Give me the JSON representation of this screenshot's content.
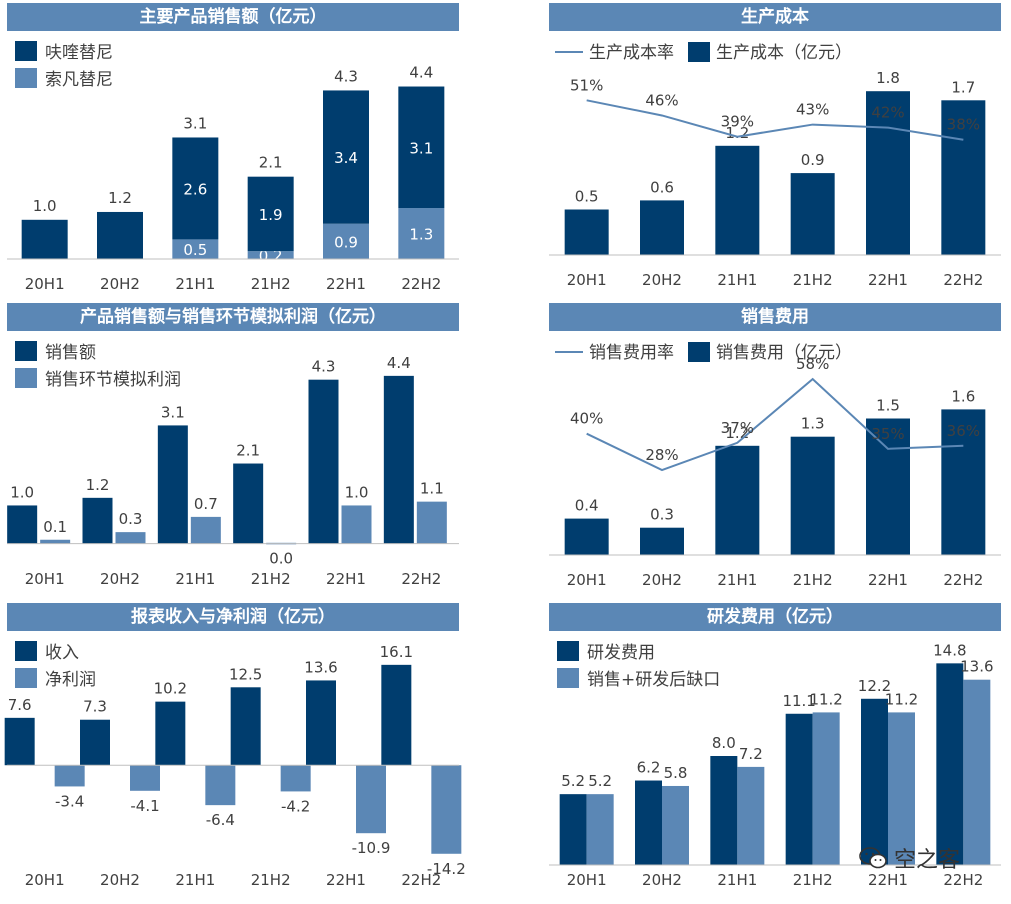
{
  "colors": {
    "dark": "#003d6e",
    "light": "#5b87b5",
    "title_bg": "#5b87b5",
    "text": "#404040"
  },
  "watermark": {
    "text": "空之客",
    "icon": "wechat-icon"
  },
  "chart_data": [
    {
      "id": "p1",
      "type": "bar",
      "stacked": true,
      "title": "主要产品销售额（亿元）",
      "categories": [
        "20H1",
        "20H2",
        "21H1",
        "21H2",
        "22H1",
        "22H2"
      ],
      "series": [
        {
          "name": "呋喹替尼",
          "values": [
            1.0,
            1.2,
            2.6,
            1.9,
            3.4,
            3.1
          ],
          "color": "dark",
          "labels": [
            "",
            "",
            "2.6",
            "1.9",
            "3.4",
            "3.1"
          ]
        },
        {
          "name": "索凡替尼",
          "values": [
            0,
            0,
            0.5,
            0.2,
            0.9,
            1.3
          ],
          "color": "light",
          "labels": [
            "",
            "",
            "0.5",
            "0.2",
            "0.9",
            "1.3"
          ]
        }
      ],
      "totals": [
        "1.0",
        "1.2",
        "3.1",
        "2.1",
        "4.3",
        "4.4"
      ],
      "ylim": [
        0,
        5
      ],
      "legend": "top-left"
    },
    {
      "id": "p2",
      "type": "bar+line",
      "title": "生产成本",
      "categories": [
        "20H1",
        "20H2",
        "21H1",
        "21H2",
        "22H1",
        "22H2"
      ],
      "bars": {
        "name": "生产成本（亿元）",
        "values": [
          0.5,
          0.6,
          1.2,
          0.9,
          1.8,
          1.7
        ],
        "color": "dark"
      },
      "line": {
        "name": "生产成本率",
        "values": [
          51,
          46,
          39,
          43,
          42,
          38
        ],
        "labels": [
          "51%",
          "46%",
          "39%",
          "43%",
          "42%",
          "38%"
        ],
        "color": "light"
      },
      "ylim": [
        0,
        2
      ],
      "line_ylim": [
        0,
        60
      ],
      "legend": "top"
    },
    {
      "id": "p3",
      "type": "bar",
      "grouped": true,
      "title": "产品销售额与销售环节模拟利润（亿元）",
      "categories": [
        "20H1",
        "20H2",
        "21H1",
        "21H2",
        "22H1",
        "22H2"
      ],
      "series": [
        {
          "name": "销售额",
          "values": [
            1.0,
            1.2,
            3.1,
            2.1,
            4.3,
            4.4
          ],
          "color": "dark",
          "labels": [
            "1.0",
            "1.2",
            "3.1",
            "2.1",
            "4.3",
            "4.4"
          ]
        },
        {
          "name": "销售环节模拟利润",
          "values": [
            0.1,
            0.3,
            0.7,
            0.0,
            1.0,
            1.1
          ],
          "color": "light",
          "labels": [
            "0.1",
            "0.3",
            "0.7",
            "0.0",
            "1.0",
            "1.1"
          ]
        }
      ],
      "ylim": [
        -0.3,
        5
      ],
      "legend": "top-left"
    },
    {
      "id": "p4",
      "type": "bar+line",
      "title": "销售费用",
      "categories": [
        "20H1",
        "20H2",
        "21H1",
        "21H2",
        "22H1",
        "22H2"
      ],
      "bars": {
        "name": "销售费用（亿元）",
        "values": [
          0.4,
          0.3,
          1.2,
          1.3,
          1.5,
          1.6
        ],
        "color": "dark"
      },
      "line": {
        "name": "销售费用率",
        "values": [
          40,
          28,
          37,
          58,
          35,
          36
        ],
        "labels": [
          "40%",
          "28%",
          "37%",
          "58%",
          "35%",
          "36%"
        ],
        "color": "light"
      },
      "ylim": [
        0,
        2
      ],
      "line_ylim": [
        0,
        60
      ],
      "legend": "top"
    },
    {
      "id": "p5",
      "type": "bar",
      "grouped": true,
      "title": "报表收入与净利润（亿元）",
      "categories": [
        "20H1",
        "20H2",
        "21H1",
        "21H2",
        "22H1",
        "22H2"
      ],
      "series": [
        {
          "name": "收入",
          "values": [
            7.6,
            7.3,
            10.2,
            12.5,
            13.6,
            16.1
          ],
          "color": "dark",
          "labels": [
            "7.6",
            "7.3",
            "10.2",
            "12.5",
            "13.6",
            "16.1"
          ]
        },
        {
          "name": "净利润",
          "values": [
            -3.4,
            -4.1,
            -6.4,
            -4.2,
            -10.9,
            -14.2
          ],
          "color": "light",
          "labels": [
            "-3.4",
            "-4.1",
            "-6.4",
            "-4.2",
            "-10.9",
            "-14.2"
          ]
        }
      ],
      "ylim": [
        -16,
        18
      ],
      "legend": "top-left"
    },
    {
      "id": "p6",
      "type": "bar",
      "grouped": true,
      "title": "研发费用（亿元）",
      "categories": [
        "20H1",
        "20H2",
        "21H1",
        "21H2",
        "22H1",
        "22H2"
      ],
      "series": [
        {
          "name": "研发费用",
          "values": [
            5.2,
            6.2,
            8.0,
            11.1,
            12.2,
            14.8
          ],
          "color": "dark",
          "labels": [
            "5.2",
            "6.2",
            "8.0",
            "11.1",
            "12.2",
            "14.8"
          ]
        },
        {
          "name": "销售+研发后缺口",
          "values": [
            5.2,
            5.8,
            7.2,
            11.2,
            11.2,
            13.6
          ],
          "color": "light",
          "labels": [
            "5.2",
            "5.8",
            "7.2",
            "11.2",
            "11.2",
            "13.6"
          ]
        }
      ],
      "ylim": [
        0,
        16
      ],
      "legend": "top-left"
    }
  ]
}
